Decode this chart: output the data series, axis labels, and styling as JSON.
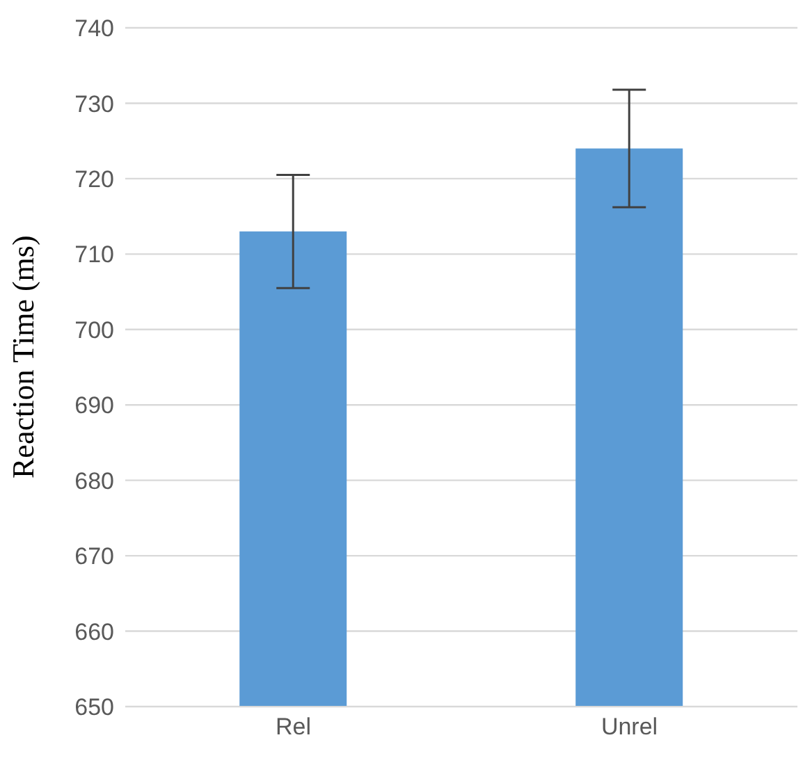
{
  "chart_data": {
    "type": "bar",
    "ylabel": "Reaction Time (ms)",
    "categories": [
      "Rel",
      "Unrel"
    ],
    "values": [
      713,
      724
    ],
    "errors": [
      7.5,
      7.8
    ],
    "color": "#5b9bd5",
    "ylim": [
      650,
      740
    ],
    "yticks": [
      650,
      660,
      670,
      680,
      690,
      700,
      710,
      720,
      730,
      740
    ],
    "grid": "y",
    "legend": false
  }
}
